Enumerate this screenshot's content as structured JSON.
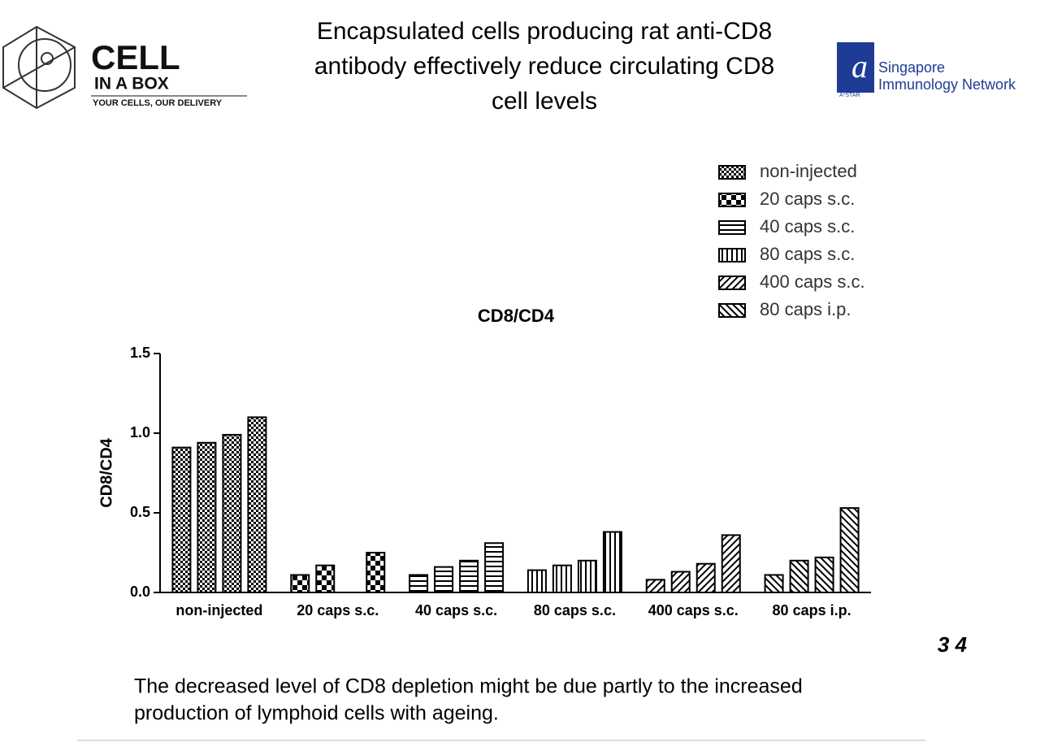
{
  "header": {
    "title_lines": [
      "Encapsulated cells producing rat anti-CD8",
      "antibody effectively reduce circulating CD8",
      "cell levels"
    ],
    "left_logo": {
      "line1": "CELL",
      "line2": "IN A BOX",
      "tagline": "YOUR CELLS, OUR DELIVERY"
    },
    "right_logo": {
      "line1": "Singapore",
      "line2": "Immunology Network",
      "mark": "A*STAR"
    }
  },
  "chart_data": {
    "type": "grouped-bar",
    "title": "CD8/CD4",
    "y_label": "CD8/CD4",
    "categories": [
      "non-injected",
      "20 caps s.c.",
      "40 caps s.c.",
      "80 caps s.c.",
      "400 caps s.c.",
      "80 caps i.p."
    ],
    "values": [
      [
        0.91,
        0.94,
        0.99,
        1.1
      ],
      [
        0.11,
        0.17,
        null,
        0.25
      ],
      [
        0.11,
        0.16,
        0.2,
        0.31
      ],
      [
        0.14,
        0.17,
        0.2,
        0.38
      ],
      [
        0.08,
        0.13,
        0.18,
        0.36
      ],
      [
        0.11,
        0.2,
        0.22,
        0.53
      ]
    ],
    "ylim": [
      0,
      1.5
    ],
    "yticks": [
      {
        "value": 0,
        "label": "0.0"
      },
      0.5,
      {
        "value": 1,
        "label": "1.0"
      },
      1.5
    ],
    "legend": "top-right",
    "grid": false
  },
  "page_number": "3 4",
  "caption_lines": [
    "The decreased level of CD8 depletion might be due partly to the increased",
    "production of lymphoid cells with ageing."
  ]
}
